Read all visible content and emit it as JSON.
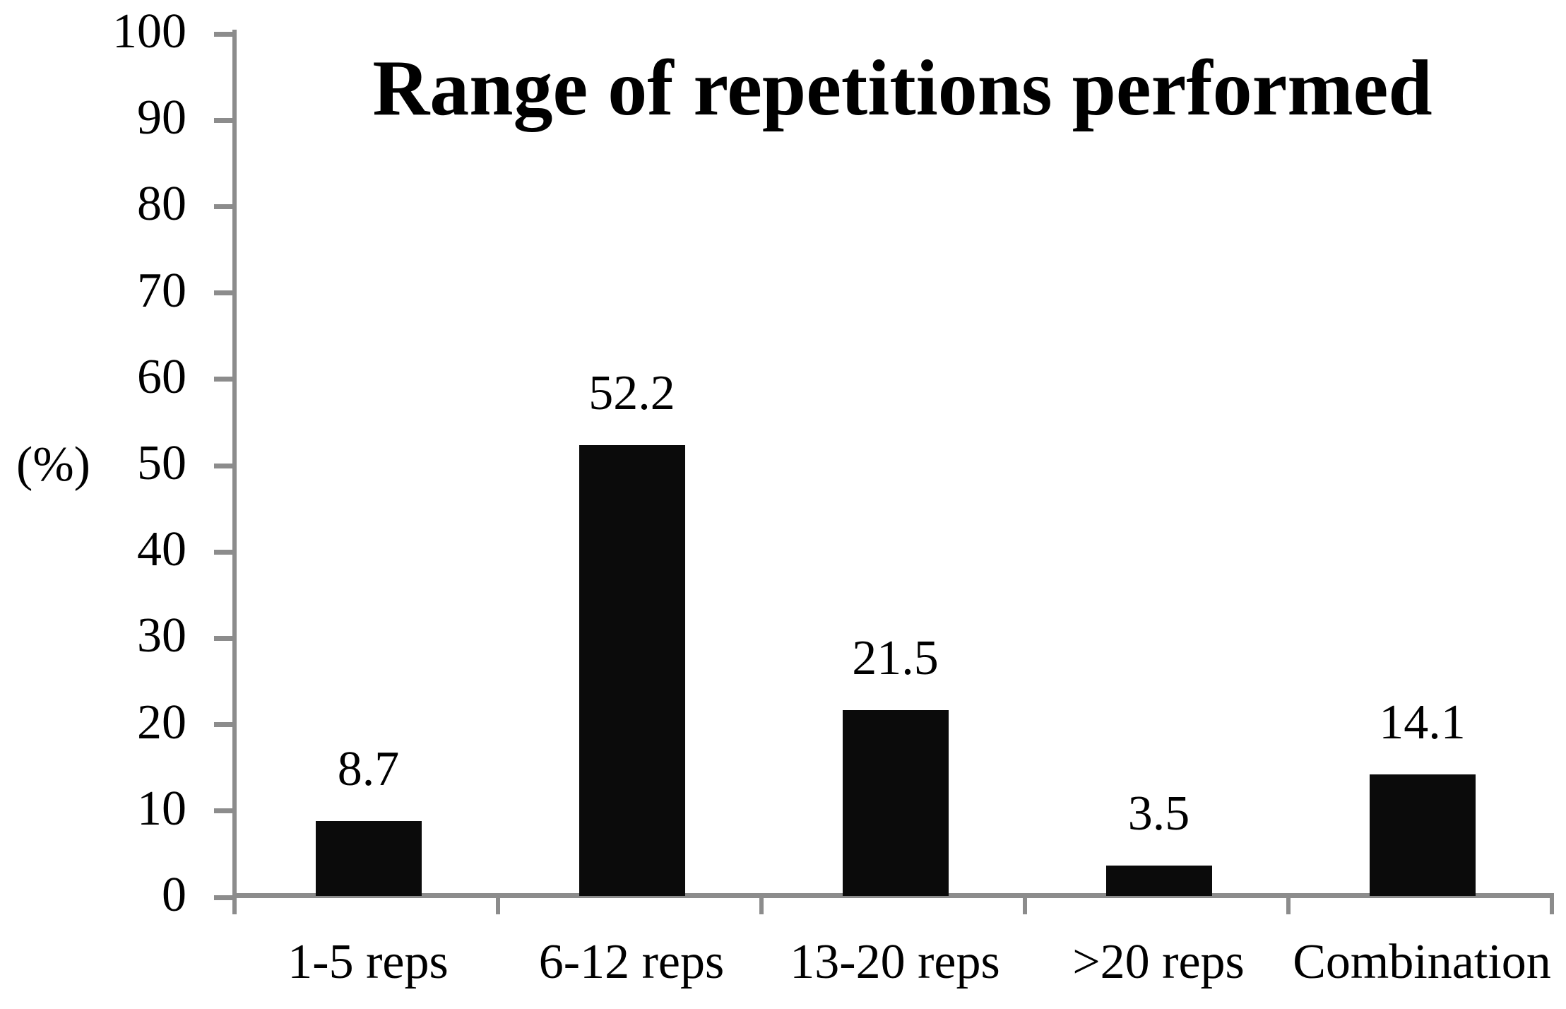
{
  "chart": {
    "title": "Range of repetitions performed",
    "ylabel": "(%)"
  },
  "chart_data": {
    "type": "bar",
    "title": "Range of repetitions performed",
    "xlabel": "",
    "ylabel": "(%)",
    "categories": [
      "1-5 reps",
      "6-12 reps",
      "13-20 reps",
      ">20 reps",
      "Combination"
    ],
    "values": [
      8.7,
      52.2,
      21.5,
      3.5,
      14.1
    ],
    "ylim": [
      0,
      100
    ],
    "ytick_step": 10,
    "ytick_labels": [
      "0",
      "10",
      "20",
      "30",
      "40",
      "50",
      "60",
      "70",
      "80",
      "90",
      "100"
    ],
    "grid": false,
    "legend": null,
    "bar_color": "#0b0b0b",
    "axis_color": "#8c8c8c",
    "text_color": "#000000",
    "background_color": "#ffffff"
  }
}
